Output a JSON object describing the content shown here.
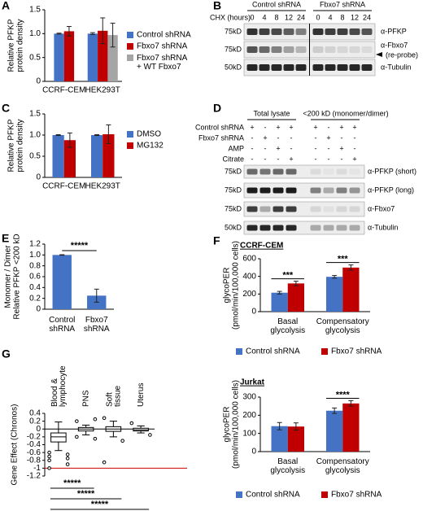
{
  "chart_data": [
    {
      "type": "bar",
      "panel": "A",
      "y_label": [
        "Relative PFKP",
        "protein density"
      ],
      "categories": [
        "CCRF-CEM",
        "HEK293T"
      ],
      "series": [
        {
          "name": "Control shRNA",
          "color": "#4472c4",
          "values": [
            1.0,
            1.0
          ],
          "errors": [
            0.01,
            0.02
          ]
        },
        {
          "name": "Fbxo7 shRNA",
          "color": "#c00000",
          "values": [
            1.05,
            1.06
          ],
          "errors": [
            0.1,
            0.27
          ]
        },
        {
          "name": "Fbxo7 shRNA + WT Fbxo7",
          "color": "#a5a5a5",
          "values": [
            null,
            0.97
          ],
          "errors": [
            null,
            0.25
          ]
        }
      ],
      "ylim": [
        0,
        1.5
      ],
      "yticks": [
        0,
        0.5,
        {
          "value": 1,
          "label": "1.0"
        },
        1.5
      ],
      "legend": "right"
    },
    {
      "type": "bar",
      "panel": "C",
      "y_label": [
        "Relative PFKP",
        "protein density"
      ],
      "categories": [
        "CCRF-CEM",
        "HEK293T"
      ],
      "series": [
        {
          "name": "DMSO",
          "color": "#4472c4",
          "values": [
            1.0,
            1.0
          ],
          "errors": [
            0.01,
            0.01
          ]
        },
        {
          "name": "MG132",
          "color": "#c00000",
          "values": [
            0.88,
            1.02
          ],
          "errors": [
            0.17,
            0.22
          ]
        }
      ],
      "ylim": [
        0,
        1.5
      ],
      "yticks": [
        0,
        0.5,
        {
          "value": 1,
          "label": "1.0"
        },
        1.5
      ],
      "legend": "right"
    },
    {
      "type": "bar",
      "panel": "E",
      "y_label": [
        "Monomer / Dimer",
        "Relative PFKP <200 kD"
      ],
      "categories": [
        "Control shRNA",
        "Fbxo7 shRNA"
      ],
      "series": [
        {
          "color": "#4472c4",
          "values": [
            1.0,
            0.25
          ],
          "errors": [
            0.005,
            0.12
          ]
        }
      ],
      "ylim": [
        0,
        1.2
      ],
      "yticks": [
        0,
        0.2,
        0.4,
        0.6,
        0.8,
        {
          "value": 1,
          "label": "1.0"
        },
        1.2
      ],
      "comparison": "*****"
    },
    {
      "type": "bar",
      "panel": "F",
      "title": "CCRF-CEM",
      "y_label": [
        "glycoPER",
        "(pmol/min/100,000 cells)"
      ],
      "categories": [
        "Basal glycolysis",
        "Compensatory glycolysis"
      ],
      "series": [
        {
          "name": "Control shRNA",
          "color": "#4472c4",
          "values": [
            215,
            395
          ],
          "errors": [
            15,
            15
          ]
        },
        {
          "name": "Fbxo7 shRNA",
          "color": "#c00000",
          "values": [
            320,
            500
          ],
          "errors": [
            25,
            30
          ]
        }
      ],
      "ylim": [
        0,
        600
      ],
      "yticks": [
        0,
        200,
        400,
        600
      ],
      "annotations": [
        "***",
        "***"
      ],
      "legend": "bottom"
    },
    {
      "type": "bar",
      "title": "Jurkat",
      "y_label": [
        "glycoPER",
        "(pmol/min/100,000 cells)"
      ],
      "categories": [
        "Basal glycolysis",
        "Compensatory glycolysis"
      ],
      "series": [
        {
          "name": "Control shRNA",
          "color": "#4472c4",
          "values": [
            140,
            225
          ],
          "errors": [
            20,
            15
          ]
        },
        {
          "name": "Fbxo7 shRNA",
          "color": "#c00000",
          "values": [
            138,
            265
          ],
          "errors": [
            20,
            15
          ]
        }
      ],
      "ylim": [
        0,
        300
      ],
      "yticks": [
        0,
        100,
        200,
        300
      ],
      "annotations": [
        null,
        "****"
      ],
      "legend": "bottom"
    },
    {
      "type": "box",
      "panel": "G",
      "y_label": [
        "Gene Effect (Chronos)"
      ],
      "categories": [
        "Blood & lymphocyte",
        "PNS",
        "Soft tissue",
        "Uterus"
      ],
      "boxes": [
        {
          "whisker_low": -0.55,
          "q1": -0.33,
          "median": -0.2,
          "q3": -0.1,
          "whisker_high": 0.18,
          "outliers": [
            -0.6,
            -0.65,
            -0.7,
            -0.75,
            -0.8,
            -0.9,
            -1.0
          ]
        },
        {
          "whisker_low": -0.15,
          "q1": -0.05,
          "median": 0.0,
          "q3": 0.04,
          "whisker_high": 0.1,
          "outliers": [
            0.2,
            0.25,
            -0.2,
            -0.25
          ]
        },
        {
          "whisker_low": -0.2,
          "q1": -0.06,
          "median": 0.0,
          "q3": 0.06,
          "whisker_high": 0.2,
          "outliers": [
            0.28,
            -0.3,
            -0.85
          ]
        },
        {
          "whisker_low": -0.1,
          "q1": -0.05,
          "median": -0.02,
          "q3": 0.02,
          "whisker_high": 0.08,
          "outliers": [
            0.15,
            -0.15
          ]
        }
      ],
      "hlines": [
        {
          "value": 0,
          "color": "#000000"
        },
        {
          "value": -1,
          "color": "#cc0000"
        }
      ],
      "ylim": [
        -1.2,
        0.4
      ],
      "yticks": [
        -1.2,
        -1,
        -0.8,
        -0.6,
        -0.4,
        -0.2,
        0,
        0.2,
        0.4
      ],
      "comparisons": [
        "*****",
        "*****",
        "*****"
      ]
    }
  ],
  "blots": [
    {
      "panel": "B",
      "header": "CHX (hours)",
      "groups": [
        {
          "name": "Control shRNA",
          "lanes": [
            0,
            4,
            8,
            12,
            24
          ]
        },
        {
          "name": "Fbxo7 shRNA",
          "lanes": [
            0,
            4,
            8,
            12,
            24
          ]
        }
      ],
      "rows": [
        {
          "marker": "75kD",
          "label": "α-PFKP"
        },
        {
          "marker": "75kD",
          "label": "α-Fbxo7",
          "note": "(re-probe)"
        },
        {
          "marker": "50kD",
          "label": "α-Tubulin"
        }
      ]
    },
    {
      "panel": "D",
      "groups": [
        {
          "name": "Total lysate"
        },
        {
          "name": "<200 kD (monomer/dimer)"
        }
      ],
      "conditions": [
        {
          "name": "Control shRNA",
          "signs": [
            "+",
            "-",
            "+",
            "+",
            "+",
            "-",
            "+",
            "+"
          ]
        },
        {
          "name": "Fbxo7 shRNA",
          "signs": [
            "-",
            "+",
            "-",
            "-",
            "-",
            "+",
            "-",
            "-"
          ]
        },
        {
          "name": "AMP",
          "signs": [
            "-",
            "-",
            "+",
            "-",
            "-",
            "-",
            "+",
            "-"
          ]
        },
        {
          "name": "Citrate",
          "signs": [
            "-",
            "-",
            "-",
            "+",
            "-",
            "-",
            "-",
            "+"
          ]
        }
      ],
      "rows": [
        {
          "marker": "75kD",
          "label": "α-PFKP (short)"
        },
        {
          "marker": "75kD",
          "label": "α-PFKP (long)"
        },
        {
          "marker": "75kD",
          "label": "α-Fbxo7"
        },
        {
          "marker": "50kD",
          "label": "α-Tubulin"
        }
      ]
    }
  ]
}
